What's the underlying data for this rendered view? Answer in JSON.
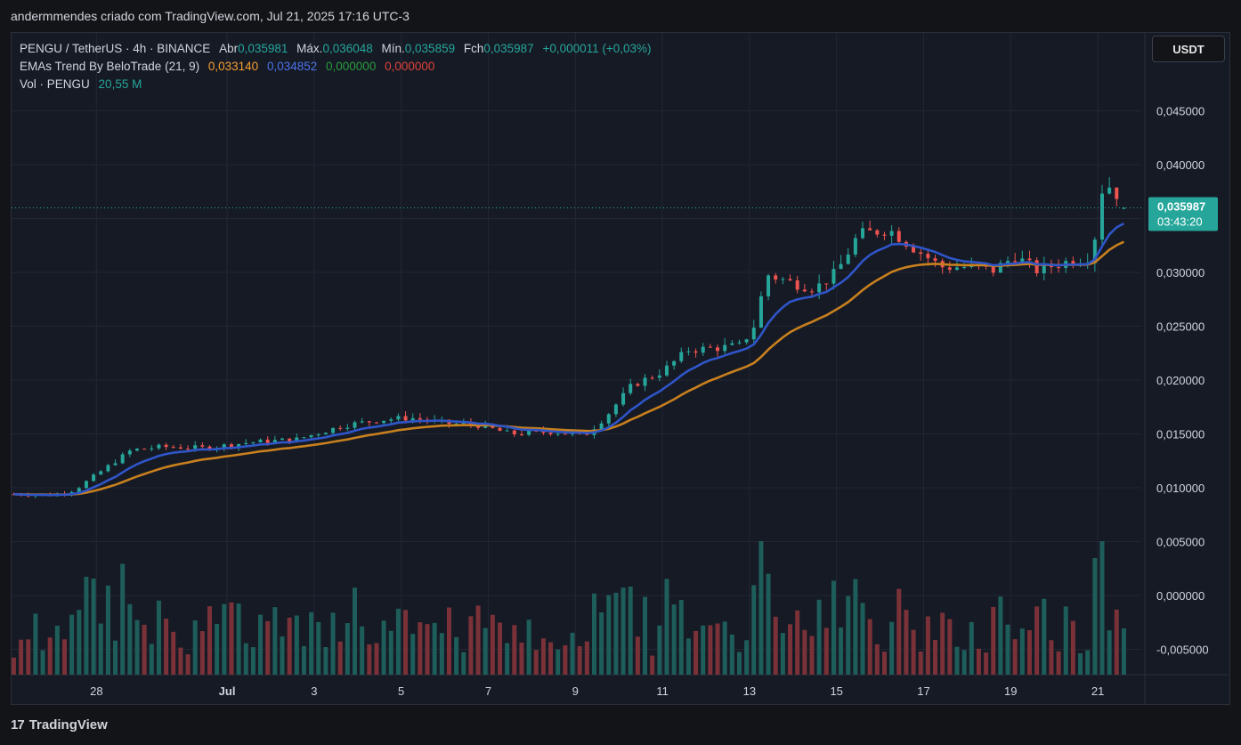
{
  "header": {
    "caption": "andermmendes criado com TradingView.com, Jul 21, 2025 17:16 UTC-3"
  },
  "legend": {
    "symbol": "PENGU / TetherUS · 4h · BINANCE",
    "open_label": "Abr",
    "open": "0,035981",
    "high_label": "Máx.",
    "high": "0,036048",
    "low_label": "Mín.",
    "low": "0,035859",
    "close_label": "Fch",
    "close": "0,035987",
    "change": "+0,000011 (+0,03%)",
    "ema_name": "EMAs Trend By BeloTrade (21, 9)",
    "ema_v1": "0,033140",
    "ema_v2": "0,034852",
    "ema_v3": "0,000000",
    "ema_v4": "0,000000",
    "vol_name": "Vol · PENGU",
    "vol_value": "20,55 M"
  },
  "currency_button": "USDT",
  "price_tag": {
    "price": "0,035987",
    "countdown": "03:43:20"
  },
  "brand": {
    "logo": "17",
    "name": "TradingView"
  },
  "colors": {
    "up": "#26a69a",
    "down": "#ef5350",
    "vol_up": "#1e5e5a",
    "vol_down": "#7a3238",
    "ema_fast": "#2f55c8",
    "ema_slow": "#c8801e",
    "tag": "#26a69a"
  },
  "chart_data": {
    "type": "candlestick",
    "yticks": [
      "0,045000",
      "0,040000",
      "0,035000",
      "0,030000",
      "0,025000",
      "0,020000",
      "0,015000",
      "0,010000",
      "0,005000",
      "0,000000",
      "-0,005000"
    ],
    "ytick_values": [
      0.045,
      0.04,
      0.035,
      0.03,
      0.025,
      0.02,
      0.015,
      0.01,
      0.005,
      0.0,
      -0.005
    ],
    "xticks": [
      "28",
      "Jul",
      "3",
      "5",
      "7",
      "9",
      "11",
      "13",
      "15",
      "17",
      "19",
      "21"
    ],
    "xtick_days": [
      28,
      31,
      33,
      35,
      37,
      39,
      41,
      43,
      45,
      47,
      49,
      51
    ],
    "x_start_day": 26.05,
    "x_end_day": 52.0,
    "candles_per_day": 6,
    "anchors_close": [
      [
        26.1,
        0.0094
      ],
      [
        27.0,
        0.0093
      ],
      [
        27.5,
        0.0098
      ],
      [
        28.2,
        0.0118
      ],
      [
        28.8,
        0.0135
      ],
      [
        29.5,
        0.0138
      ],
      [
        30.5,
        0.0137
      ],
      [
        31.5,
        0.0142
      ],
      [
        32.6,
        0.0145
      ],
      [
        33.7,
        0.0158
      ],
      [
        34.5,
        0.0163
      ],
      [
        35.2,
        0.0165
      ],
      [
        36.0,
        0.016
      ],
      [
        36.8,
        0.0158
      ],
      [
        37.5,
        0.015
      ],
      [
        38.5,
        0.0152
      ],
      [
        39.2,
        0.0148
      ],
      [
        39.7,
        0.0166
      ],
      [
        40.3,
        0.0195
      ],
      [
        41.0,
        0.0208
      ],
      [
        41.6,
        0.0228
      ],
      [
        42.3,
        0.023
      ],
      [
        42.8,
        0.0232
      ],
      [
        43.1,
        0.025
      ],
      [
        43.4,
        0.0298
      ],
      [
        44.0,
        0.029
      ],
      [
        44.5,
        0.0285
      ],
      [
        45.0,
        0.03
      ],
      [
        45.5,
        0.0335
      ],
      [
        46.2,
        0.034
      ],
      [
        46.8,
        0.0322
      ],
      [
        47.4,
        0.0305
      ],
      [
        48.0,
        0.0305
      ],
      [
        48.6,
        0.0302
      ],
      [
        49.1,
        0.0315
      ],
      [
        49.6,
        0.0302
      ],
      [
        50.3,
        0.031
      ],
      [
        50.9,
        0.0315
      ],
      [
        51.0,
        0.037
      ],
      [
        51.2,
        0.0383
      ],
      [
        51.5,
        0.037
      ],
      [
        51.7,
        0.036
      ]
    ],
    "ema_fast_last": 0.034852,
    "ema_slow_last": 0.03314,
    "last_price": 0.035987,
    "volume_peaks_note": "",
    "volume_scale_max": 0.0076
  }
}
